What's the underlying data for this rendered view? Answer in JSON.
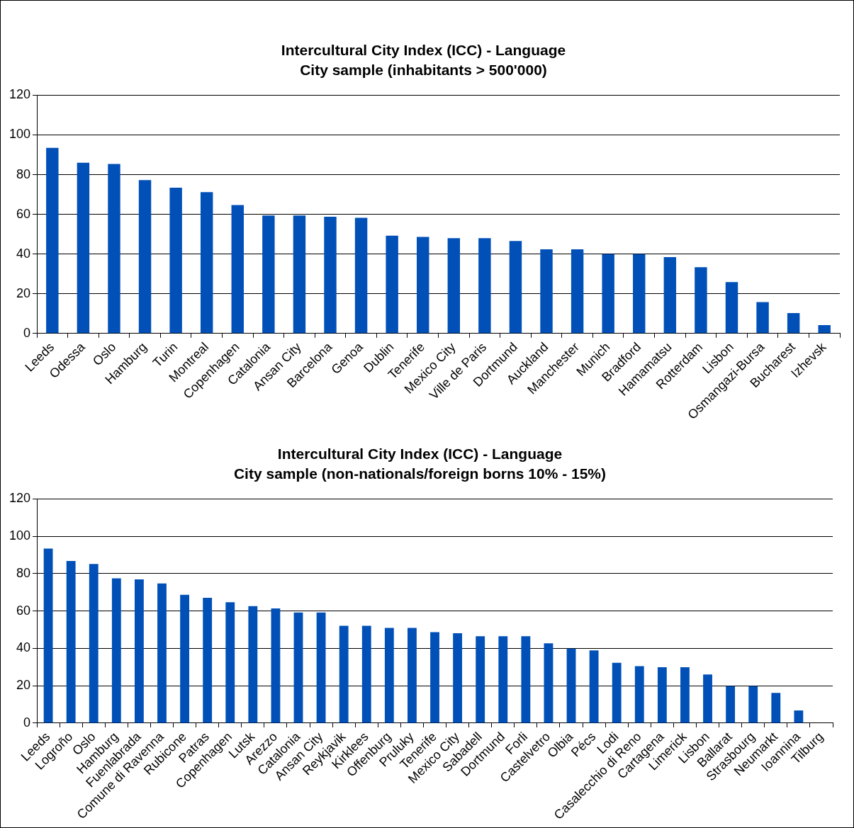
{
  "chart_data": [
    {
      "type": "bar",
      "title": "Intercultural City Index (ICC) - Language",
      "subtitle": "City sample (inhabitants > 500'000)",
      "categories": [
        "Leeds",
        "Odessa",
        "Oslo",
        "Hamburg",
        "Turin",
        "Montreal",
        "Copenhagen",
        "Catalonia",
        "Ansan City",
        "Barcelona",
        "Genoa",
        "Dublin",
        "Tenerife",
        "Mexico City",
        "Ville de Paris",
        "Dortmund",
        "Auckland",
        "Manchester",
        "Munich",
        "Bradford",
        "Hamamatsu",
        "Rotterdam",
        "Lisbon",
        "Osmangazi-Bursa",
        "Bucharest",
        "Izhevsk"
      ],
      "values": [
        93.5,
        86,
        85.4,
        77.3,
        73.4,
        71.2,
        64.7,
        59.4,
        59.4,
        58.8,
        58.3,
        49.3,
        48.6,
        48,
        48,
        46.6,
        42.4,
        42.4,
        40,
        40,
        38.5,
        33.4,
        25.9,
        15.8,
        10.3,
        4.2
      ],
      "color": "#0050b8",
      "ylim": [
        0,
        120
      ],
      "yticks": [
        0,
        20,
        40,
        60,
        80,
        100,
        120
      ],
      "grid": "y",
      "legend": false
    },
    {
      "type": "bar",
      "title": "Intercultural City Index (ICC) - Language",
      "subtitle": "City sample (non-nationals/foreign borns 10% - 15%)",
      "categories": [
        "Leeds",
        "Logroño",
        "Oslo",
        "Hamburg",
        "Fuenlabrada",
        "Comune di Ravenna",
        "Rubicone",
        "Patras",
        "Copenhagen",
        "Lutsk",
        "Arezzo",
        "Catalonia",
        "Ansan City",
        "Reykjavik",
        "Kirklees",
        "Offenburg",
        "Pruluky",
        "Tenerife",
        "Mexico City",
        "Sabadell",
        "Dortmund",
        "Forli",
        "Castelvetro",
        "Olbia",
        "Pécs",
        "Lodi",
        "Casalecchio di Reno",
        "Cartagena",
        "Limerick",
        "Lisbon",
        "Ballarat",
        "Strasbourg",
        "Neumarkt",
        "Ioannina",
        "Tilburg"
      ],
      "values": [
        93.4,
        86.8,
        85.2,
        77.5,
        76.9,
        74.8,
        68.7,
        67.1,
        64.7,
        62.6,
        61.4,
        59.2,
        59.2,
        52.1,
        52.1,
        51,
        51,
        48.7,
        48.1,
        46.5,
        46.5,
        46.5,
        42.7,
        39.9,
        38.9,
        32.3,
        30.5,
        29.9,
        29.9,
        26.1,
        19.8,
        19.8,
        16.2,
        6.8,
        0
      ],
      "color": "#0050b8",
      "ylim": [
        0,
        120
      ],
      "yticks": [
        0,
        20,
        40,
        60,
        80,
        100,
        120
      ],
      "grid": "y",
      "legend": false
    }
  ]
}
